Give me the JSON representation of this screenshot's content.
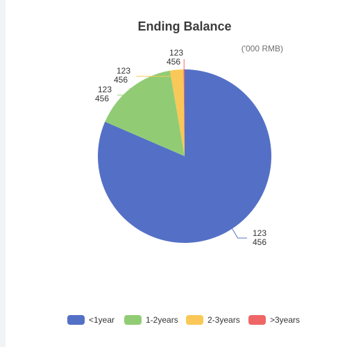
{
  "chart_data": {
    "type": "pie",
    "title": "Ending Balance",
    "subtitle": "('000 RMB)",
    "categories": [
      "<1year",
      "1-2years",
      "2-3years",
      ">3years"
    ],
    "values": [
      81.5,
      15.8,
      2.5,
      0.2
    ],
    "data_labels": [
      [
        "123",
        "456"
      ],
      [
        "123",
        "456"
      ],
      [
        "123",
        "456"
      ],
      [
        "123",
        "456"
      ]
    ],
    "colors": [
      "#5470c6",
      "#91cc75",
      "#fac858",
      "#ee6666"
    ],
    "legend_position": "bottom"
  }
}
